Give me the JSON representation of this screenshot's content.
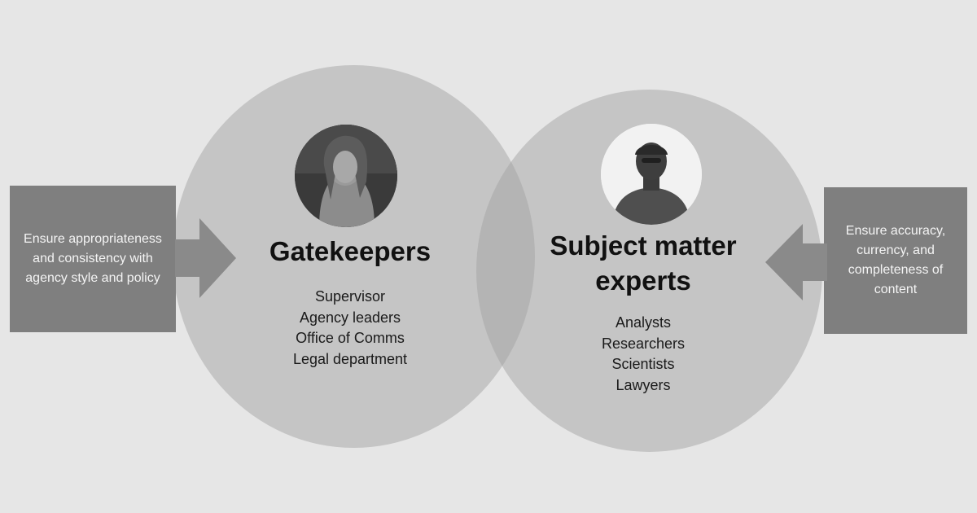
{
  "gatekeepers": {
    "title": "Gatekeepers",
    "roles": [
      "Supervisor",
      "Agency leaders",
      "Office of Comms",
      "Legal department"
    ],
    "note": "Ensure appropriateness and consistency with agency style and policy"
  },
  "experts": {
    "title": "Subject matter experts",
    "roles": [
      "Analysts",
      "Researchers",
      "Scientists",
      "Lawyers"
    ],
    "note": "Ensure accuracy, currency, and completeness of content"
  },
  "colors": {
    "background": "#e6e6e6",
    "circle": "#c5c5c5",
    "overlap": "#b4b4b4",
    "side_box": "#7f7f7f",
    "arrow": "#8a8a8a"
  },
  "icons": {
    "gatekeeper_avatar": "person-photo-icon",
    "expert_avatar": "person-photo-icon"
  }
}
